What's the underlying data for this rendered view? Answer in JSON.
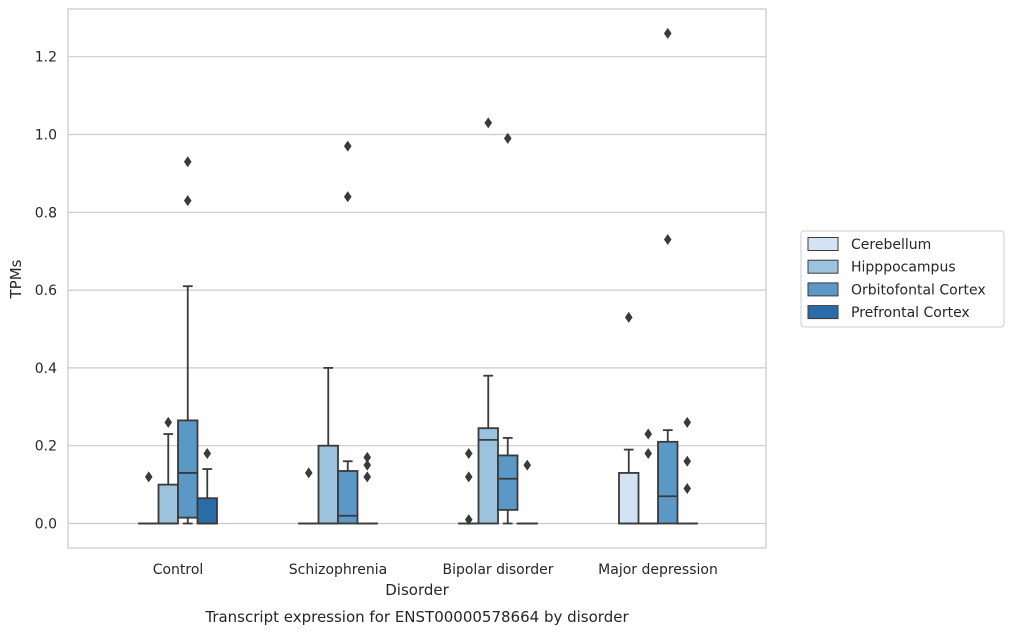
{
  "chart_data": {
    "type": "box",
    "xlabel": "Disorder",
    "ylabel": "TPMs",
    "caption": "Transcript expression for ENST00000578664 by disorder",
    "categories": [
      "Control",
      "Schizophrenia",
      "Bipolar disorder",
      "Major depression"
    ],
    "ylim": [
      -0.06,
      1.32
    ],
    "yticks": [
      0.0,
      0.2,
      0.4,
      0.6,
      0.8,
      1.0,
      1.2
    ],
    "ytick_labels": [
      "0.0",
      "0.2",
      "0.4",
      "0.6",
      "0.8",
      "1.0",
      "1.2"
    ],
    "grid": "horizontal",
    "legend_position": "right",
    "series": [
      {
        "name": "Cerebellum",
        "color": "#d4e3f3",
        "boxes": [
          {
            "q1": 0,
            "median": 0,
            "q3": 0,
            "whisker_low": 0,
            "whisker_high": 0,
            "outliers": [
              0.12
            ]
          },
          {
            "q1": 0,
            "median": 0,
            "q3": 0,
            "whisker_low": 0,
            "whisker_high": 0,
            "outliers": [
              0.13
            ]
          },
          {
            "q1": 0,
            "median": 0,
            "q3": 0,
            "whisker_low": 0,
            "whisker_high": 0,
            "outliers": [
              0.01,
              0.12,
              0.18
            ]
          },
          {
            "q1": 0,
            "median": 0,
            "q3": 0.13,
            "whisker_low": 0,
            "whisker_high": 0.19,
            "outliers": [
              0.53
            ]
          }
        ]
      },
      {
        "name": "Hipppocampus",
        "color": "#9cc3de",
        "boxes": [
          {
            "q1": 0,
            "median": 0,
            "q3": 0.1,
            "whisker_low": 0,
            "whisker_high": 0.23,
            "outliers": [
              0.26
            ]
          },
          {
            "q1": 0,
            "median": 0,
            "q3": 0.2,
            "whisker_low": 0,
            "whisker_high": 0.4,
            "outliers": []
          },
          {
            "q1": 0,
            "median": 0.215,
            "q3": 0.245,
            "whisker_low": 0,
            "whisker_high": 0.38,
            "outliers": [
              1.03
            ]
          },
          {
            "q1": 0,
            "median": 0,
            "q3": 0,
            "whisker_low": 0,
            "whisker_high": 0,
            "outliers": [
              0.18,
              0.23
            ]
          }
        ]
      },
      {
        "name": "Orbitofontal Cortex",
        "color": "#5b98c6",
        "boxes": [
          {
            "q1": 0.015,
            "median": 0.13,
            "q3": 0.265,
            "whisker_low": 0,
            "whisker_high": 0.61,
            "outliers": [
              0.83,
              0.93
            ]
          },
          {
            "q1": 0,
            "median": 0.02,
            "q3": 0.135,
            "whisker_low": 0,
            "whisker_high": 0.16,
            "outliers": [
              0.84,
              0.97
            ]
          },
          {
            "q1": 0.035,
            "median": 0.115,
            "q3": 0.175,
            "whisker_low": 0,
            "whisker_high": 0.22,
            "outliers": [
              0.99
            ]
          },
          {
            "q1": 0,
            "median": 0.07,
            "q3": 0.21,
            "whisker_low": 0,
            "whisker_high": 0.24,
            "outliers": [
              0.73,
              1.26
            ]
          }
        ]
      },
      {
        "name": "Prefrontal Cortex",
        "color": "#2b6ca8",
        "boxes": [
          {
            "q1": 0,
            "median": 0,
            "q3": 0.065,
            "whisker_low": 0,
            "whisker_high": 0.14,
            "outliers": [
              0.18
            ]
          },
          {
            "q1": 0,
            "median": 0,
            "q3": 0,
            "whisker_low": 0,
            "whisker_high": 0,
            "outliers": [
              0.12,
              0.15,
              0.17
            ]
          },
          {
            "q1": 0,
            "median": 0,
            "q3": 0,
            "whisker_low": 0,
            "whisker_high": 0,
            "outliers": [
              0.15
            ]
          },
          {
            "q1": 0,
            "median": 0,
            "q3": 0,
            "whisker_low": 0,
            "whisker_high": 0,
            "outliers": [
              0.09,
              0.16,
              0.26
            ]
          }
        ]
      }
    ]
  }
}
